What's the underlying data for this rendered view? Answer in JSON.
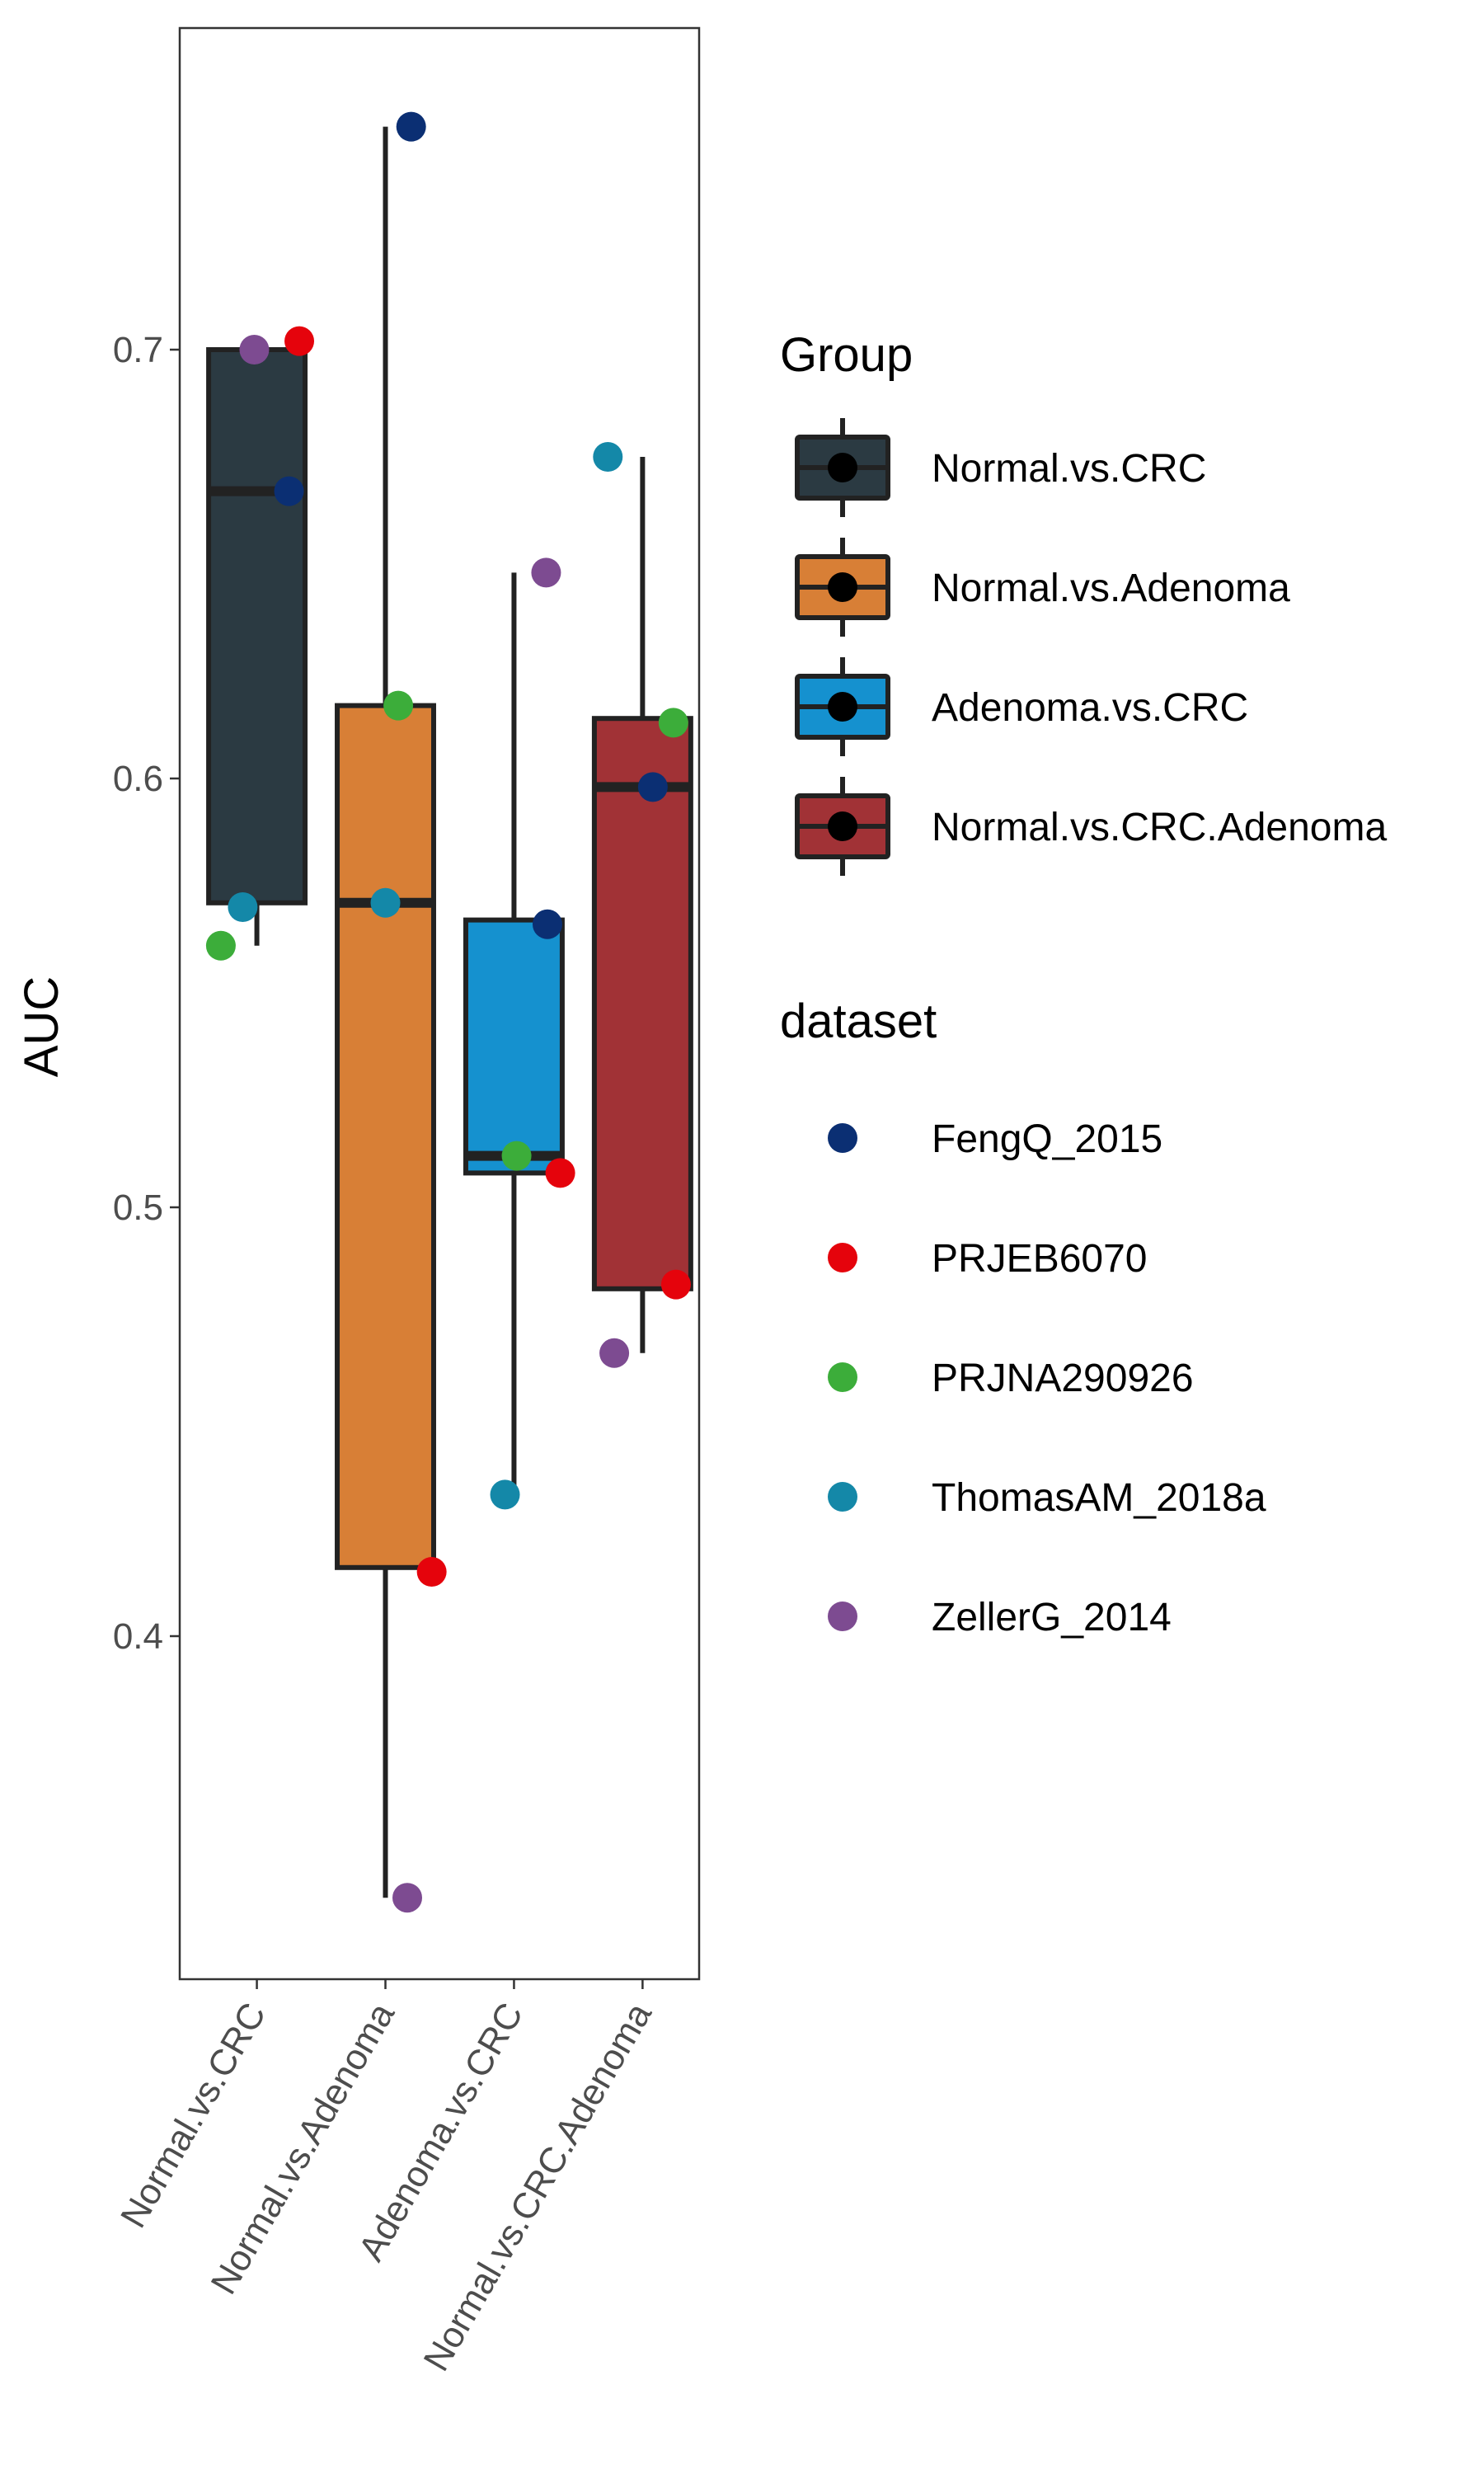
{
  "chart_data": {
    "type": "boxplot",
    "xlabel": "",
    "ylabel": "AUC",
    "ylim": [
      0.32,
      0.775
    ],
    "yticks": [
      "0.4",
      "0.5",
      "0.6",
      "0.7"
    ],
    "categories": [
      "Normal.vs.CRC",
      "Normal.vs.Adenoma",
      "Adenoma.vs.CRC",
      "Normal.vs.CRC.Adenoma"
    ],
    "boxes": [
      {
        "group": "Normal.vs.CRC",
        "whisker_low": 0.561,
        "q1": 0.571,
        "median": 0.667,
        "q3": 0.7,
        "whisker_high": 0.7,
        "fill": "#2b3a42"
      },
      {
        "group": "Normal.vs.Adenoma",
        "whisker_low": 0.339,
        "q1": 0.416,
        "median": 0.571,
        "q3": 0.617,
        "whisker_high": 0.752,
        "fill": "#d87f36"
      },
      {
        "group": "Adenoma.vs.CRC",
        "whisker_low": 0.433,
        "q1": 0.508,
        "median": 0.512,
        "q3": 0.567,
        "whisker_high": 0.648,
        "fill": "#1591cf"
      },
      {
        "group": "Normal.vs.CRC.Adenoma",
        "whisker_low": 0.466,
        "q1": 0.481,
        "median": 0.598,
        "q3": 0.614,
        "whisker_high": 0.675,
        "fill": "#a13236"
      }
    ],
    "points": [
      {
        "group": "Normal.vs.CRC",
        "dataset": "FengQ_2015",
        "y": 0.667,
        "jitter": 0.25
      },
      {
        "group": "Normal.vs.CRC",
        "dataset": "PRJEB6070",
        "y": 0.702,
        "jitter": 0.33
      },
      {
        "group": "Normal.vs.CRC",
        "dataset": "PRJNA290926",
        "y": 0.561,
        "jitter": -0.28
      },
      {
        "group": "Normal.vs.CRC",
        "dataset": "ThomasAM_2018a",
        "y": 0.57,
        "jitter": -0.11
      },
      {
        "group": "Normal.vs.CRC",
        "dataset": "ZellerG_2014",
        "y": 0.7,
        "jitter": -0.02
      },
      {
        "group": "Normal.vs.Adenoma",
        "dataset": "FengQ_2015",
        "y": 0.752,
        "jitter": 0.2
      },
      {
        "group": "Normal.vs.Adenoma",
        "dataset": "PRJEB6070",
        "y": 0.415,
        "jitter": 0.36
      },
      {
        "group": "Normal.vs.Adenoma",
        "dataset": "PRJNA290926",
        "y": 0.617,
        "jitter": 0.1
      },
      {
        "group": "Normal.vs.Adenoma",
        "dataset": "ThomasAM_2018a",
        "y": 0.571,
        "jitter": 0.0
      },
      {
        "group": "Normal.vs.Adenoma",
        "dataset": "ZellerG_2014",
        "y": 0.339,
        "jitter": 0.17
      },
      {
        "group": "Adenoma.vs.CRC",
        "dataset": "FengQ_2015",
        "y": 0.566,
        "jitter": 0.26
      },
      {
        "group": "Adenoma.vs.CRC",
        "dataset": "PRJEB6070",
        "y": 0.508,
        "jitter": 0.36
      },
      {
        "group": "Adenoma.vs.CRC",
        "dataset": "PRJNA290926",
        "y": 0.512,
        "jitter": 0.02
      },
      {
        "group": "Adenoma.vs.CRC",
        "dataset": "ThomasAM_2018a",
        "y": 0.433,
        "jitter": -0.07
      },
      {
        "group": "Adenoma.vs.CRC",
        "dataset": "ZellerG_2014",
        "y": 0.648,
        "jitter": 0.25
      },
      {
        "group": "Normal.vs.CRC.Adenoma",
        "dataset": "FengQ_2015",
        "y": 0.598,
        "jitter": 0.08
      },
      {
        "group": "Normal.vs.CRC.Adenoma",
        "dataset": "PRJEB6070",
        "y": 0.482,
        "jitter": 0.26
      },
      {
        "group": "Normal.vs.CRC.Adenoma",
        "dataset": "PRJNA290926",
        "y": 0.613,
        "jitter": 0.24
      },
      {
        "group": "Normal.vs.CRC.Adenoma",
        "dataset": "ThomasAM_2018a",
        "y": 0.675,
        "jitter": -0.27
      },
      {
        "group": "Normal.vs.CRC.Adenoma",
        "dataset": "ZellerG_2014",
        "y": 0.466,
        "jitter": -0.22
      }
    ],
    "legend_group": {
      "title": "Group",
      "entries": [
        {
          "label": "Normal.vs.CRC",
          "fill": "#2b3a42"
        },
        {
          "label": "Normal.vs.Adenoma",
          "fill": "#d87f36"
        },
        {
          "label": "Adenoma.vs.CRC",
          "fill": "#1591cf"
        },
        {
          "label": "Normal.vs.CRC.Adenoma",
          "fill": "#a13236"
        }
      ]
    },
    "legend_dataset": {
      "title": "dataset",
      "entries": [
        {
          "label": "FengQ_2015",
          "color": "#0b2f73"
        },
        {
          "label": "PRJEB6070",
          "color": "#e5030c"
        },
        {
          "label": "PRJNA290926",
          "color": "#3cad3a"
        },
        {
          "label": "ThomasAM_2018a",
          "color": "#1488a8"
        },
        {
          "label": "ZellerG_2014",
          "color": "#7d4b91"
        }
      ]
    },
    "legend_placement": "right",
    "grid": false
  }
}
